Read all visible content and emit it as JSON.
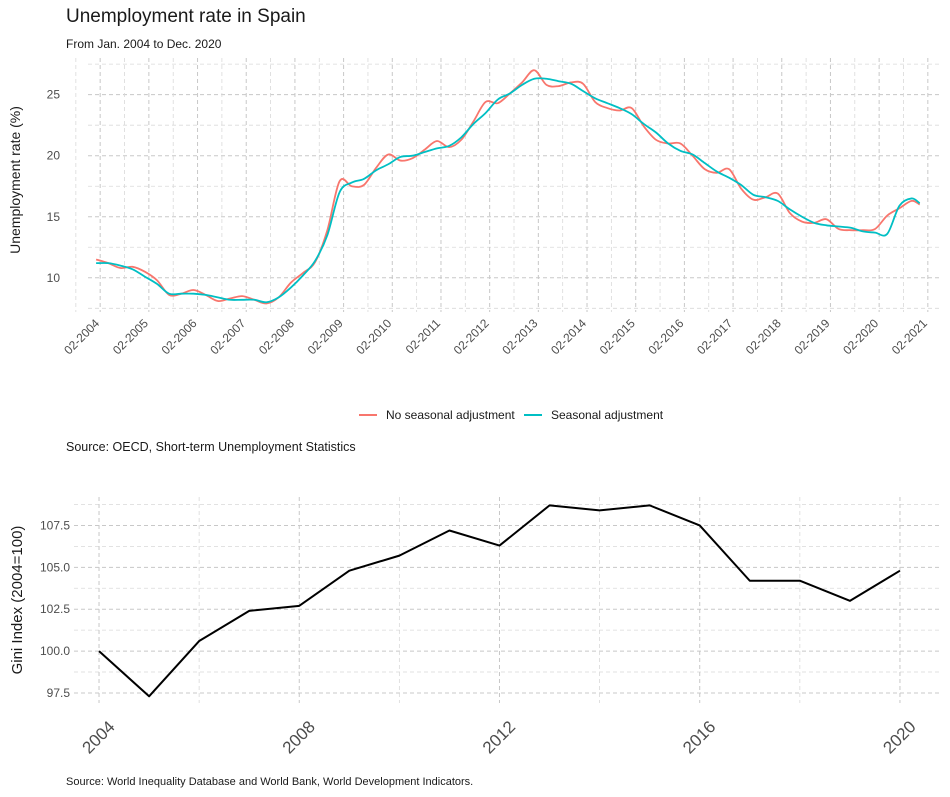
{
  "colors": {
    "no_seasonal": "#F8766D",
    "seasonal": "#00BFC4",
    "gini_line": "#000000"
  },
  "header": {
    "title": "Unemployment rate in Spain",
    "subtitle": "From Jan. 2004 to Dec. 2020"
  },
  "sources": {
    "top": "Source: OECD, Short-term Unemployment Statistics",
    "bottom": "Source: World Inequality Database and World Bank, World Development Indicators."
  },
  "chart_data": [
    {
      "type": "line",
      "title": "Unemployment rate in Spain",
      "subtitle": "From Jan. 2004 to Dec. 2020",
      "xlabel": "",
      "ylabel": "Unemployment rate (%)",
      "ylim": [
        7.2,
        28
      ],
      "xlim": [
        "2003-11",
        "2021-05"
      ],
      "x_ticks": [
        "02-2004",
        "02-2005",
        "02-2006",
        "02-2007",
        "02-2008",
        "02-2009",
        "02-2010",
        "02-2011",
        "02-2012",
        "02-2013",
        "02-2014",
        "02-2015",
        "02-2016",
        "02-2017",
        "02-2018",
        "02-2019",
        "02-2020",
        "02-2021"
      ],
      "y_ticks": [
        10,
        15,
        20,
        25
      ],
      "grid": true,
      "legend_position": "bottom",
      "series": [
        {
          "name": "No seasonal adjustment",
          "color": "#F8766D",
          "points": [
            [
              "2004-01",
              11.5
            ],
            [
              "2004-04",
              11.2
            ],
            [
              "2004-07",
              10.8
            ],
            [
              "2004-10",
              10.9
            ],
            [
              "2005-01",
              10.5
            ],
            [
              "2005-04",
              9.8
            ],
            [
              "2005-07",
              8.6
            ],
            [
              "2005-10",
              8.7
            ],
            [
              "2006-01",
              9.0
            ],
            [
              "2006-04",
              8.6
            ],
            [
              "2006-07",
              8.1
            ],
            [
              "2006-10",
              8.3
            ],
            [
              "2007-01",
              8.5
            ],
            [
              "2007-04",
              8.2
            ],
            [
              "2007-07",
              7.9
            ],
            [
              "2007-10",
              8.4
            ],
            [
              "2008-01",
              9.6
            ],
            [
              "2008-04",
              10.4
            ],
            [
              "2008-07",
              11.3
            ],
            [
              "2008-10",
              13.9
            ],
            [
              "2009-01",
              17.9
            ],
            [
              "2009-04",
              17.5
            ],
            [
              "2009-07",
              17.6
            ],
            [
              "2009-10",
              19.0
            ],
            [
              "2010-01",
              20.1
            ],
            [
              "2010-04",
              19.6
            ],
            [
              "2010-07",
              19.8
            ],
            [
              "2010-10",
              20.5
            ],
            [
              "2011-01",
              21.2
            ],
            [
              "2011-04",
              20.7
            ],
            [
              "2011-07",
              21.3
            ],
            [
              "2011-10",
              22.8
            ],
            [
              "2012-01",
              24.4
            ],
            [
              "2012-04",
              24.3
            ],
            [
              "2012-07",
              25.1
            ],
            [
              "2012-10",
              26.0
            ],
            [
              "2013-01",
              27.0
            ],
            [
              "2013-04",
              25.8
            ],
            [
              "2013-07",
              25.7
            ],
            [
              "2013-10",
              26.0
            ],
            [
              "2014-01",
              25.9
            ],
            [
              "2014-04",
              24.4
            ],
            [
              "2014-07",
              23.9
            ],
            [
              "2014-10",
              23.7
            ],
            [
              "2015-01",
              23.9
            ],
            [
              "2015-04",
              22.4
            ],
            [
              "2015-07",
              21.3
            ],
            [
              "2015-10",
              21.0
            ],
            [
              "2016-01",
              21.0
            ],
            [
              "2016-04",
              20.0
            ],
            [
              "2016-07",
              18.9
            ],
            [
              "2016-10",
              18.6
            ],
            [
              "2017-01",
              18.9
            ],
            [
              "2017-04",
              17.3
            ],
            [
              "2017-07",
              16.4
            ],
            [
              "2017-10",
              16.6
            ],
            [
              "2018-01",
              16.9
            ],
            [
              "2018-04",
              15.3
            ],
            [
              "2018-07",
              14.6
            ],
            [
              "2018-10",
              14.5
            ],
            [
              "2019-01",
              14.8
            ],
            [
              "2019-04",
              14.0
            ],
            [
              "2019-07",
              13.9
            ],
            [
              "2019-10",
              13.9
            ],
            [
              "2020-01",
              14.0
            ],
            [
              "2020-04",
              15.1
            ],
            [
              "2020-07",
              15.7
            ],
            [
              "2020-10",
              16.3
            ],
            [
              "2020-12",
              16.0
            ]
          ]
        },
        {
          "name": "Seasonal adjustment",
          "color": "#00BFC4",
          "points": [
            [
              "2004-01",
              11.2
            ],
            [
              "2004-04",
              11.2
            ],
            [
              "2004-07",
              11.0
            ],
            [
              "2004-10",
              10.7
            ],
            [
              "2005-01",
              10.1
            ],
            [
              "2005-04",
              9.5
            ],
            [
              "2005-07",
              8.7
            ],
            [
              "2005-10",
              8.7
            ],
            [
              "2006-01",
              8.7
            ],
            [
              "2006-04",
              8.6
            ],
            [
              "2006-07",
              8.4
            ],
            [
              "2006-10",
              8.2
            ],
            [
              "2007-01",
              8.2
            ],
            [
              "2007-04",
              8.2
            ],
            [
              "2007-07",
              8.0
            ],
            [
              "2007-10",
              8.4
            ],
            [
              "2008-01",
              9.2
            ],
            [
              "2008-04",
              10.2
            ],
            [
              "2008-07",
              11.4
            ],
            [
              "2008-10",
              13.5
            ],
            [
              "2009-01",
              17.0
            ],
            [
              "2009-04",
              17.8
            ],
            [
              "2009-07",
              18.1
            ],
            [
              "2009-10",
              18.8
            ],
            [
              "2010-01",
              19.3
            ],
            [
              "2010-04",
              19.9
            ],
            [
              "2010-07",
              20.0
            ],
            [
              "2010-10",
              20.3
            ],
            [
              "2011-01",
              20.6
            ],
            [
              "2011-04",
              20.8
            ],
            [
              "2011-07",
              21.5
            ],
            [
              "2011-10",
              22.6
            ],
            [
              "2012-01",
              23.5
            ],
            [
              "2012-04",
              24.6
            ],
            [
              "2012-07",
              25.1
            ],
            [
              "2012-10",
              25.8
            ],
            [
              "2013-01",
              26.3
            ],
            [
              "2013-04",
              26.3
            ],
            [
              "2013-07",
              26.1
            ],
            [
              "2013-10",
              25.9
            ],
            [
              "2014-01",
              25.3
            ],
            [
              "2014-04",
              24.7
            ],
            [
              "2014-07",
              24.3
            ],
            [
              "2014-10",
              23.9
            ],
            [
              "2015-01",
              23.4
            ],
            [
              "2015-04",
              22.6
            ],
            [
              "2015-07",
              21.9
            ],
            [
              "2015-10",
              21.0
            ],
            [
              "2016-01",
              20.4
            ],
            [
              "2016-04",
              20.1
            ],
            [
              "2016-07",
              19.4
            ],
            [
              "2016-10",
              18.7
            ],
            [
              "2017-01",
              18.2
            ],
            [
              "2017-04",
              17.6
            ],
            [
              "2017-07",
              16.8
            ],
            [
              "2017-10",
              16.6
            ],
            [
              "2018-01",
              16.3
            ],
            [
              "2018-04",
              15.6
            ],
            [
              "2018-07",
              15.0
            ],
            [
              "2018-10",
              14.5
            ],
            [
              "2019-01",
              14.3
            ],
            [
              "2019-04",
              14.2
            ],
            [
              "2019-07",
              14.1
            ],
            [
              "2019-10",
              13.8
            ],
            [
              "2020-01",
              13.7
            ],
            [
              "2020-04",
              13.6
            ],
            [
              "2020-07",
              15.9
            ],
            [
              "2020-10",
              16.5
            ],
            [
              "2020-12",
              16.1
            ]
          ]
        }
      ]
    },
    {
      "type": "line",
      "title": "",
      "xlabel": "",
      "ylabel": "Gini Index (2004=100)",
      "ylim": [
        96.9,
        109.2
      ],
      "xlim": [
        2003.5,
        2020.8
      ],
      "x_ticks": [
        2004,
        2008,
        2012,
        2016,
        2020
      ],
      "y_ticks": [
        97.5,
        100.0,
        102.5,
        105.0,
        107.5
      ],
      "y_tick_labels": [
        "97.5",
        "100.0",
        "102.5",
        "105.0",
        "107.5"
      ],
      "grid": true,
      "series": [
        {
          "color": "#000000",
          "x": [
            2004,
            2005,
            2006,
            2007,
            2008,
            2009,
            2010,
            2011,
            2012,
            2013,
            2014,
            2015,
            2016,
            2017,
            2018,
            2019,
            2020
          ],
          "y": [
            100.0,
            97.3,
            100.6,
            102.4,
            102.7,
            104.8,
            105.7,
            107.2,
            106.3,
            108.7,
            108.4,
            108.7,
            107.5,
            104.2,
            104.2,
            103.0,
            104.8
          ]
        }
      ]
    }
  ]
}
